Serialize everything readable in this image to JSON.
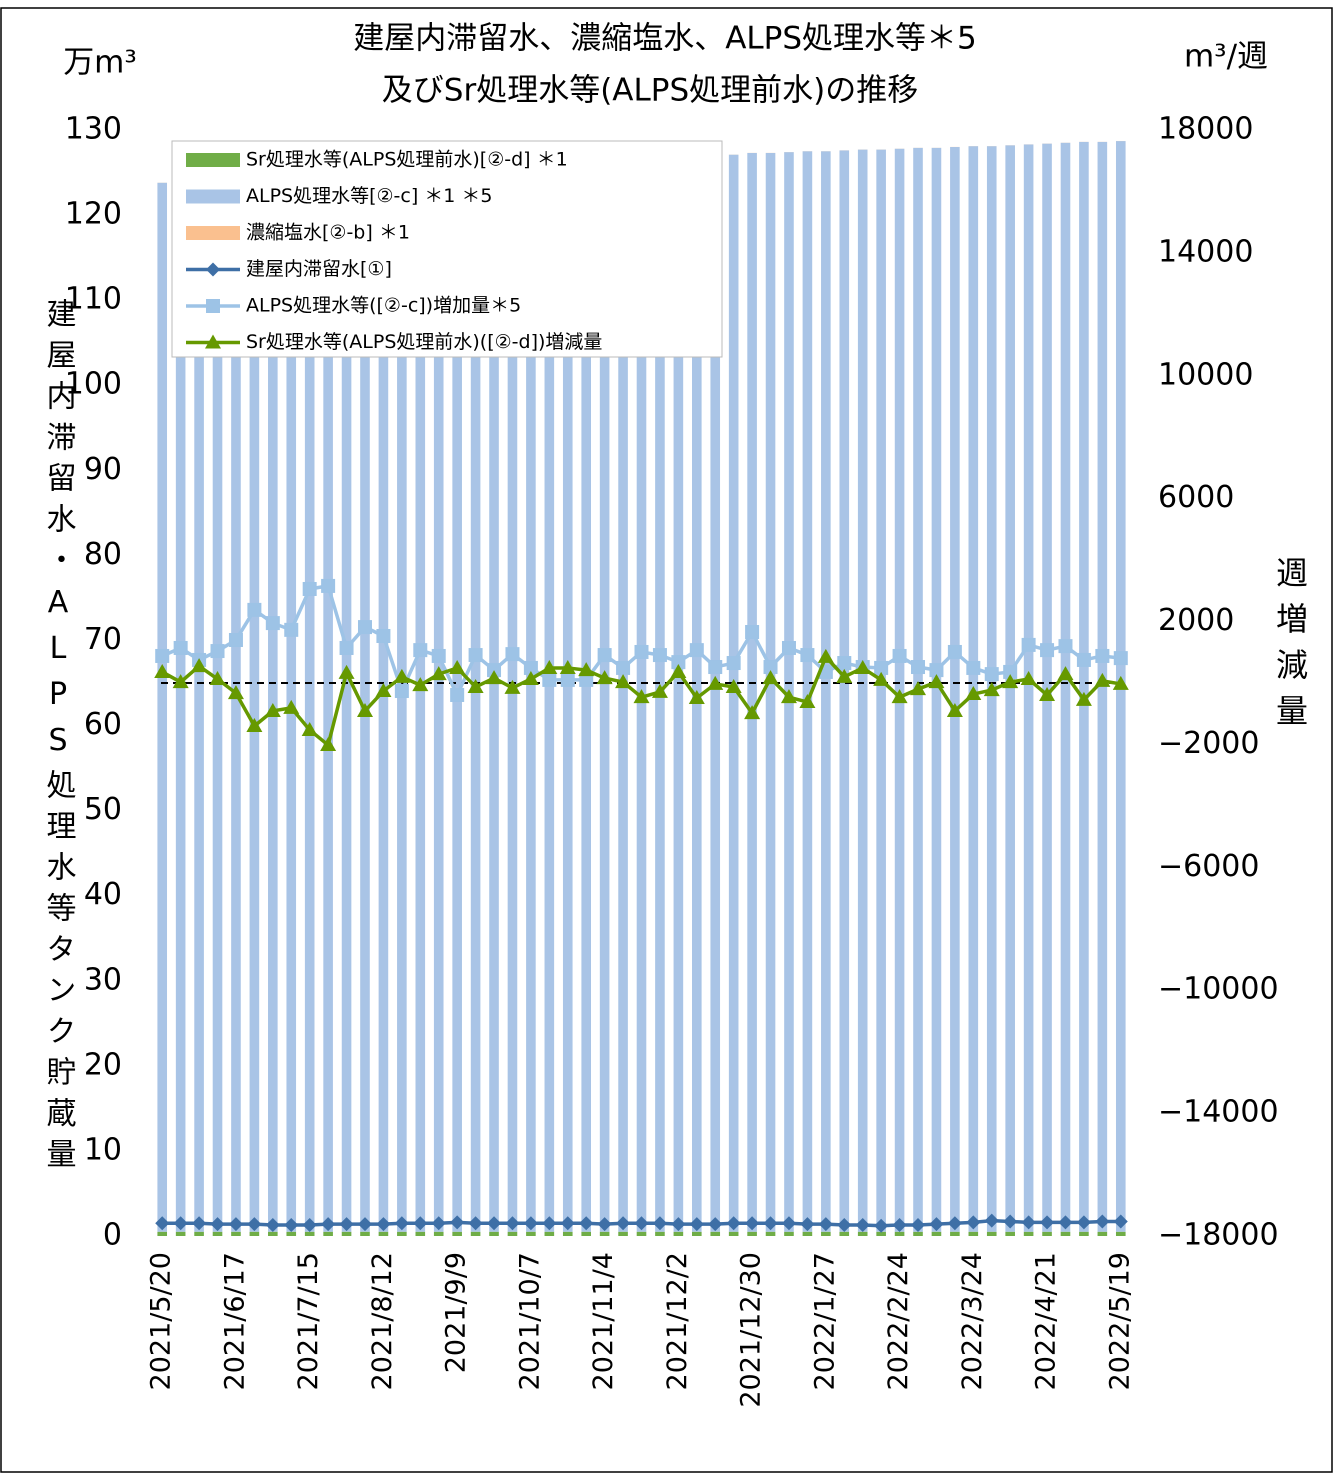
{
  "chart_data": {
    "type": "combo",
    "title_lines": [
      "建屋内滞留水、濃縮塩水、ALPS処理水等＊5",
      "及びSr処理水等(ALPS処理前水)の推移"
    ],
    "y_unit": "万m³",
    "y2_unit": "m³/週",
    "y_label": "建屋内滞留水・ALPS処理水等タンク貯蔵量",
    "y2_label": "週増減量",
    "categories": [
      "2021/5/20",
      null,
      null,
      null,
      "2021/6/17",
      null,
      null,
      null,
      "2021/7/15",
      null,
      null,
      null,
      "2021/8/12",
      null,
      null,
      null,
      "2021/9/9",
      null,
      null,
      null,
      "2021/10/7",
      null,
      null,
      null,
      "2021/11/4",
      null,
      null,
      null,
      "2021/12/2",
      null,
      null,
      null,
      "2021/12/30",
      null,
      null,
      null,
      "2022/1/27",
      null,
      null,
      null,
      "2022/2/24",
      null,
      null,
      null,
      "2022/3/24",
      null,
      null,
      null,
      "2022/4/21",
      null,
      null,
      null,
      "2022/5/19"
    ],
    "ylim": [
      0,
      130
    ],
    "yticks": [
      0,
      10,
      20,
      30,
      40,
      50,
      60,
      70,
      80,
      90,
      100,
      110,
      120,
      130
    ],
    "y2lim": [
      -18000,
      18000
    ],
    "y2ticks": [
      {
        "value": -18000,
        "label": "−18000"
      },
      {
        "value": -14000,
        "label": "−14000"
      },
      {
        "value": -10000,
        "label": "−10000"
      },
      {
        "value": -6000,
        "label": "−6000"
      },
      {
        "value": -2000,
        "label": "−2000"
      },
      2000,
      6000,
      10000,
      14000,
      18000
    ],
    "series": [
      {
        "name": "Sr処理水等(ALPS処理前水)[②-d] ＊1",
        "type": "bar",
        "color": "#70ad47",
        "values": [
          0.5,
          0.5,
          0.5,
          0.5,
          0.5,
          0.5,
          0.5,
          0.5,
          0.5,
          0.5,
          0.5,
          0.5,
          0.5,
          0.5,
          0.5,
          0.5,
          0.5,
          0.5,
          0.5,
          0.5,
          0.5,
          0.5,
          0.5,
          0.5,
          0.5,
          0.5,
          0.5,
          0.5,
          0.5,
          0.5,
          0.5,
          0.5,
          0.5,
          0.5,
          0.5,
          0.5,
          0.5,
          0.5,
          0.5,
          0.5,
          0.5,
          0.5,
          0.5,
          0.5,
          0.5,
          0.5,
          0.5,
          0.5,
          0.5,
          0.5,
          0.5,
          0.5,
          0.5
        ]
      },
      {
        "name": "ALPS処理水等[②-c] ＊1 ＊5",
        "type": "bar",
        "color": "#a9c4e6",
        "values": [
          123.3,
          123.4,
          123.5,
          123.6,
          123.7,
          123.9,
          124.1,
          124.3,
          124.6,
          124.9,
          125.0,
          125.2,
          125.4,
          125.4,
          125.5,
          125.6,
          125.6,
          125.7,
          125.7,
          125.8,
          125.9,
          125.9,
          125.9,
          125.9,
          126.0,
          126.1,
          126.2,
          126.3,
          126.3,
          126.4,
          126.5,
          126.6,
          126.8,
          126.8,
          126.9,
          127.0,
          127.0,
          127.1,
          127.2,
          127.2,
          127.3,
          127.4,
          127.4,
          127.5,
          127.6,
          127.6,
          127.7,
          127.8,
          127.9,
          128.0,
          128.1,
          128.1,
          128.2
        ]
      },
      {
        "name": "濃縮塩水[②-b] ＊1",
        "type": "bar",
        "color": "#fac08f",
        "values": [
          0.01,
          0.01,
          0.01,
          0.01,
          0.01,
          0.01,
          0.01,
          0.01,
          0.01,
          0.01,
          0.01,
          0.01,
          0.01,
          0.01,
          0.01,
          0.01,
          0.01,
          0.01,
          0.01,
          0.01,
          0.01,
          0.01,
          0.01,
          0.01,
          0.01,
          0.01,
          0.01,
          0.01,
          0.01,
          0.01,
          0.01,
          0.01,
          0.01,
          0.01,
          0.01,
          0.01,
          0.01,
          0.01,
          0.01,
          0.01,
          0.01,
          0.01,
          0.01,
          0.01,
          0.01,
          0.01,
          0.01,
          0.01,
          0.01,
          0.01,
          0.01,
          0.01,
          0.01
        ]
      },
      {
        "name": "建屋内滞留水[①]",
        "type": "line",
        "marker": "diamond",
        "color": "#3e6fa6",
        "values": [
          1.5,
          1.5,
          1.5,
          1.4,
          1.4,
          1.4,
          1.3,
          1.3,
          1.3,
          1.4,
          1.4,
          1.4,
          1.4,
          1.5,
          1.5,
          1.5,
          1.6,
          1.5,
          1.5,
          1.5,
          1.5,
          1.5,
          1.5,
          1.5,
          1.4,
          1.5,
          1.5,
          1.5,
          1.4,
          1.4,
          1.4,
          1.5,
          1.5,
          1.5,
          1.5,
          1.4,
          1.4,
          1.3,
          1.3,
          1.2,
          1.3,
          1.3,
          1.4,
          1.5,
          1.6,
          1.8,
          1.7,
          1.6,
          1.6,
          1.6,
          1.6,
          1.7,
          1.7
        ]
      },
      {
        "name": "ALPS処理水等([②-c])増加量＊5",
        "type": "line",
        "marker": "square",
        "axis": "y2",
        "color": "#9dc3e6",
        "values": [
          880,
          1140,
          750,
          1040,
          1400,
          2380,
          1950,
          1730,
          3060,
          3160,
          1140,
          1820,
          1530,
          -260,
          1070,
          880,
          -390,
          910,
          420,
          940,
          490,
          100,
          100,
          100,
          910,
          490,
          1010,
          910,
          680,
          1070,
          520,
          650,
          1660,
          520,
          1140,
          910,
          360,
          650,
          520,
          490,
          880,
          520,
          420,
          1010,
          490,
          290,
          360,
          1240,
          1070,
          1200,
          750,
          880,
          810
        ]
      },
      {
        "name": "Sr処理水等(ALPS処理前水)([②-d])増減量",
        "type": "line",
        "marker": "triangle",
        "axis": "y2",
        "color": "#669900",
        "values": [
          360,
          30,
          550,
          130,
          -330,
          -1400,
          -910,
          -810,
          -1530,
          -2020,
          330,
          -910,
          -260,
          200,
          -70,
          290,
          490,
          -130,
          160,
          -160,
          130,
          490,
          490,
          420,
          160,
          30,
          -460,
          -290,
          360,
          -490,
          -30,
          -130,
          -980,
          160,
          -460,
          -620,
          850,
          200,
          490,
          100,
          -460,
          -200,
          30,
          -910,
          -360,
          -230,
          30,
          130,
          -390,
          290,
          -550,
          70,
          -30
        ]
      }
    ]
  }
}
